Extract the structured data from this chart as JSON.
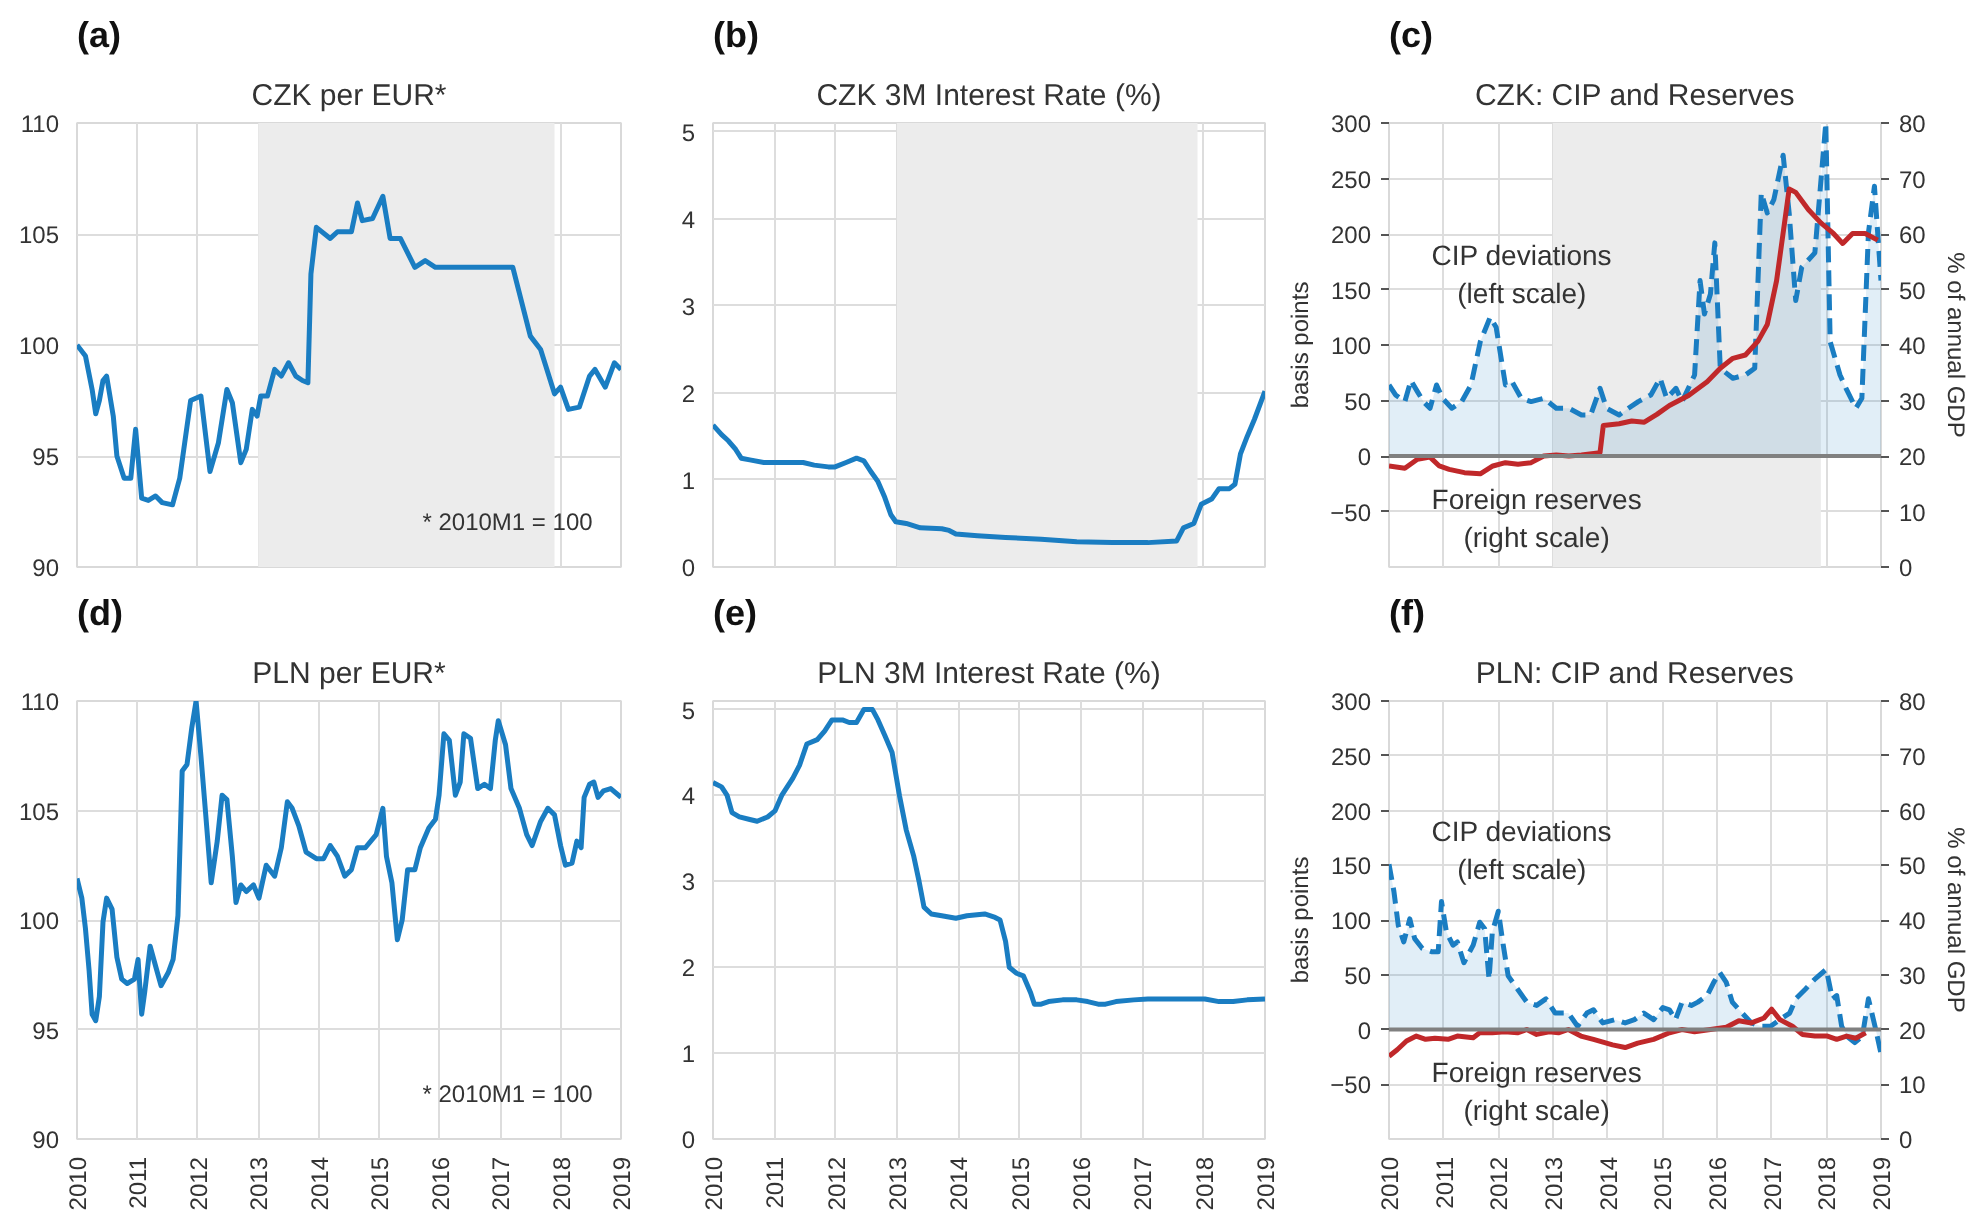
{
  "chart_data": [
    {
      "type": "line",
      "title": "CZK per EUR*",
      "annotations": [
        "(a)",
        "* 2010M1  = 100"
      ],
      "xlim": [
        2010,
        2019
      ],
      "xticks": [
        2010,
        2011,
        2012,
        2013,
        2014,
        2015,
        2016,
        2017,
        2018,
        2019
      ],
      "ylim": [
        90,
        110
      ],
      "yticks": [
        90,
        95,
        100,
        105,
        110
      ],
      "tick_labels": "y",
      "grid": true,
      "bands": [
        {
          "axis": "x",
          "from": 2013,
          "to": 2017.9,
          "color": "#ececec"
        }
      ],
      "series": [
        {
          "color": "#1a7dc2",
          "x": [
            2010.0,
            2010.14,
            2010.25,
            2010.31,
            2010.37,
            2010.43,
            2010.49,
            2010.6,
            2010.66,
            2010.78,
            2010.89,
            2010.97,
            2011.07,
            2011.18,
            2011.3,
            2011.41,
            2011.58,
            2011.7,
            2011.88,
            2012.05,
            2012.2,
            2012.34,
            2012.48,
            2012.57,
            2012.71,
            2012.8,
            2012.9,
            2012.98,
            2013.04,
            2013.15,
            2013.27,
            2013.38,
            2013.5,
            2013.62,
            2013.73,
            2013.82,
            2013.87,
            2013.96,
            2014.19,
            2014.31,
            2014.54,
            2014.64,
            2014.72,
            2014.89,
            2015.06,
            2015.18,
            2015.35,
            2015.59,
            2015.76,
            2015.93,
            2016.63,
            2017.21,
            2017.5,
            2017.67,
            2017.9,
            2018.0,
            2018.13,
            2018.31,
            2018.48,
            2018.57,
            2018.74,
            2018.89,
            2019.0
          ],
          "values": [
            100.0,
            99.5,
            98.0,
            96.9,
            97.5,
            98.4,
            98.6,
            96.8,
            95.0,
            94.0,
            94.0,
            96.2,
            93.1,
            93.0,
            93.2,
            92.9,
            92.8,
            94.0,
            97.5,
            97.7,
            94.3,
            95.6,
            98.0,
            97.4,
            94.7,
            95.3,
            97.1,
            96.8,
            97.7,
            97.7,
            98.9,
            98.6,
            99.2,
            98.6,
            98.4,
            98.3,
            103.2,
            105.3,
            104.8,
            105.1,
            105.1,
            106.4,
            105.6,
            105.7,
            106.7,
            104.8,
            104.8,
            103.5,
            103.8,
            103.5,
            103.5,
            103.5,
            100.4,
            99.8,
            97.8,
            98.1,
            97.1,
            97.2,
            98.6,
            98.9,
            98.1,
            99.2,
            98.9
          ]
        }
      ]
    },
    {
      "type": "line",
      "title": "CZK 3M Interest Rate (%)",
      "annotations": [
        "(b)"
      ],
      "xlim": [
        2010,
        2019
      ],
      "xticks": [
        2010,
        2011,
        2012,
        2013,
        2014,
        2015,
        2016,
        2017,
        2018,
        2019
      ],
      "ylim": [
        0,
        5.1
      ],
      "yticks": [
        0,
        1,
        2,
        3,
        4,
        5
      ],
      "tick_labels": "y",
      "grid": true,
      "bands": [
        {
          "axis": "x",
          "from": 2013,
          "to": 2017.9,
          "color": "#ececec"
        }
      ],
      "series": [
        {
          "color": "#1a7dc2",
          "x": [
            2010.0,
            2010.14,
            2010.25,
            2010.37,
            2010.46,
            2010.6,
            2010.83,
            2011.07,
            2011.3,
            2011.47,
            2011.65,
            2011.88,
            2011.99,
            2012.17,
            2012.34,
            2012.46,
            2012.57,
            2012.69,
            2012.8,
            2012.9,
            2012.98,
            2013.15,
            2013.38,
            2013.73,
            2013.85,
            2013.96,
            2014.31,
            2014.77,
            2015.35,
            2015.93,
            2016.51,
            2017.09,
            2017.56,
            2017.67,
            2017.84,
            2017.96,
            2018.13,
            2018.25,
            2018.42,
            2018.51,
            2018.6,
            2018.71,
            2018.83,
            2019.0
          ],
          "values": [
            1.63,
            1.52,
            1.45,
            1.35,
            1.25,
            1.23,
            1.2,
            1.2,
            1.2,
            1.2,
            1.17,
            1.15,
            1.15,
            1.2,
            1.25,
            1.22,
            1.1,
            0.98,
            0.8,
            0.6,
            0.52,
            0.5,
            0.45,
            0.44,
            0.42,
            0.38,
            0.36,
            0.34,
            0.32,
            0.29,
            0.28,
            0.28,
            0.3,
            0.45,
            0.5,
            0.72,
            0.78,
            0.9,
            0.9,
            0.95,
            1.3,
            1.5,
            1.7,
            2.02
          ]
        }
      ]
    },
    {
      "type": "line",
      "title": "CZK: CIP and Reserves",
      "annotations": [
        "(c)",
        "CIP deviations\n(left scale)",
        "Foreign reserves\n(right scale)"
      ],
      "ylabel": "basis points",
      "y2label": "% of annual GDP",
      "xlim": [
        2010,
        2019
      ],
      "xticks": [
        2010,
        2011,
        2012,
        2013,
        2014,
        2015,
        2016,
        2017,
        2018,
        2019
      ],
      "ylim": [
        -100,
        300
      ],
      "yticks": [
        {
          "value": -50,
          "label": "−50"
        },
        0,
        50,
        100,
        150,
        200,
        250,
        300
      ],
      "y2lim": [
        0,
        80
      ],
      "y2ticks": [
        0,
        10,
        20,
        30,
        40,
        50,
        60,
        70,
        80
      ],
      "tick_labels": "y",
      "grid": true,
      "bands": [
        {
          "axis": "x",
          "from": 2013,
          "to": 2017.9,
          "color": "#ececec"
        }
      ],
      "ref_lines": [
        {
          "axis": "y",
          "value": 0,
          "color": "#808080"
        }
      ],
      "series": [
        {
          "type": "area",
          "line_style": "dashed",
          "color": "#1a7dc2",
          "x": [
            2010.0,
            2010.12,
            2010.29,
            2010.4,
            2010.52,
            2010.63,
            2010.75,
            2010.87,
            2010.98,
            2011.15,
            2011.33,
            2011.5,
            2011.67,
            2011.85,
            2011.96,
            2012.13,
            2012.25,
            2012.42,
            2012.6,
            2012.83,
            2013.06,
            2013.29,
            2013.52,
            2013.69,
            2013.86,
            2013.98,
            2014.21,
            2014.38,
            2014.56,
            2014.79,
            2014.96,
            2015.08,
            2015.25,
            2015.36,
            2015.59,
            2015.69,
            2015.77,
            2015.88,
            2015.96,
            2016.06,
            2016.29,
            2016.52,
            2016.69,
            2016.81,
            2016.92,
            2017.04,
            2017.21,
            2017.32,
            2017.44,
            2017.55,
            2017.79,
            2017.99,
            2018.07,
            2018.25,
            2018.36,
            2018.54,
            2018.65,
            2018.77,
            2018.88,
            2019.0
          ],
          "values": [
            64,
            55,
            49,
            68,
            58,
            49,
            43,
            64,
            52,
            43,
            49,
            64,
            103,
            125,
            116,
            64,
            67,
            52,
            49,
            52,
            43,
            43,
            37,
            37,
            61,
            43,
            37,
            43,
            49,
            55,
            70,
            52,
            61,
            49,
            73,
            158,
            128,
            146,
            192,
            79,
            70,
            73,
            79,
            237,
            219,
            231,
            271,
            219,
            140,
            170,
            183,
            300,
            103,
            73,
            61,
            43,
            52,
            201,
            243,
            158
          ]
        },
        {
          "type": "line",
          "axis": "y2",
          "color": "#c0282a",
          "x": [
            2010.0,
            2010.29,
            2010.52,
            2010.75,
            2010.92,
            2011.1,
            2011.38,
            2011.67,
            2011.9,
            2012.13,
            2012.36,
            2012.6,
            2012.83,
            2013.06,
            2013.29,
            2013.52,
            2013.86,
            2013.92,
            2014.21,
            2014.44,
            2014.67,
            2014.9,
            2015.13,
            2015.48,
            2015.82,
            2016.06,
            2016.29,
            2016.52,
            2016.75,
            2016.92,
            2017.09,
            2017.32,
            2017.44,
            2017.67,
            2017.9,
            2018.13,
            2018.3,
            2018.48,
            2018.71,
            2018.94
          ],
          "values": [
            18.2,
            17.8,
            19.4,
            19.8,
            18.2,
            17.6,
            17.0,
            16.8,
            18.2,
            18.8,
            18.5,
            18.8,
            20.0,
            20.2,
            20.0,
            20.2,
            20.6,
            25.5,
            25.8,
            26.3,
            26.1,
            27.5,
            29.1,
            30.9,
            33.4,
            35.8,
            37.6,
            38.2,
            40.7,
            43.7,
            51.6,
            68.1,
            67.5,
            64.4,
            62.0,
            60.1,
            58.3,
            60.1,
            60.1,
            58.9
          ]
        }
      ]
    },
    {
      "type": "line",
      "title": "PLN per EUR*",
      "annotations": [
        "(d)",
        "* 2010M1  = 100"
      ],
      "xlim": [
        2010,
        2019
      ],
      "xticks": [
        2010,
        2011,
        2012,
        2013,
        2014,
        2015,
        2016,
        2017,
        2018,
        2019
      ],
      "ylim": [
        90,
        110
      ],
      "yticks": [
        90,
        95,
        100,
        105,
        110
      ],
      "grid": true,
      "series": [
        {
          "color": "#1a7dc2",
          "x": [
            2010.0,
            2010.08,
            2010.14,
            2010.2,
            2010.25,
            2010.31,
            2010.37,
            2010.43,
            2010.49,
            2010.58,
            2010.66,
            2010.74,
            2010.83,
            2010.95,
            2011.01,
            2011.07,
            2011.12,
            2011.21,
            2011.3,
            2011.39,
            2011.51,
            2011.59,
            2011.67,
            2011.74,
            2011.82,
            2011.9,
            2011.97,
            2012.05,
            2012.13,
            2012.22,
            2012.32,
            2012.4,
            2012.48,
            2012.57,
            2012.63,
            2012.71,
            2012.8,
            2012.92,
            2013.01,
            2013.13,
            2013.27,
            2013.38,
            2013.48,
            2013.56,
            2013.67,
            2013.79,
            2013.96,
            2014.08,
            2014.19,
            2014.31,
            2014.43,
            2014.54,
            2014.64,
            2014.77,
            2014.95,
            2015.06,
            2015.12,
            2015.21,
            2015.3,
            2015.38,
            2015.47,
            2015.59,
            2015.68,
            2015.82,
            2015.93,
            2015.99,
            2016.07,
            2016.16,
            2016.26,
            2016.34,
            2016.4,
            2016.51,
            2016.63,
            2016.74,
            2016.84,
            2016.92,
            2016.97,
            2017.09,
            2017.18,
            2017.32,
            2017.44,
            2017.53,
            2017.67,
            2017.79,
            2017.9,
            2018.0,
            2018.08,
            2018.19,
            2018.27,
            2018.34,
            2018.39,
            2018.48,
            2018.55,
            2018.62,
            2018.71,
            2018.83,
            2019.0
          ],
          "values": [
            101.9,
            101.0,
            99.6,
            97.7,
            95.7,
            95.4,
            96.5,
            99.9,
            101.0,
            100.5,
            98.3,
            97.3,
            97.1,
            97.3,
            98.2,
            95.7,
            96.7,
            98.8,
            97.9,
            97.0,
            97.6,
            98.2,
            100.2,
            106.8,
            107.1,
            108.8,
            110.0,
            107.5,
            104.8,
            101.7,
            103.6,
            105.7,
            105.5,
            102.9,
            100.8,
            101.6,
            101.3,
            101.6,
            101.0,
            102.5,
            102.0,
            103.3,
            105.4,
            105.1,
            104.3,
            103.1,
            102.8,
            102.8,
            103.4,
            102.9,
            102.0,
            102.3,
            103.3,
            103.3,
            103.9,
            105.1,
            102.9,
            101.7,
            99.1,
            100.0,
            102.3,
            102.3,
            103.3,
            104.2,
            104.6,
            105.7,
            108.5,
            108.2,
            105.7,
            106.3,
            108.5,
            108.3,
            106.0,
            106.2,
            106.0,
            108.2,
            109.1,
            108.0,
            106.0,
            105.1,
            103.9,
            103.4,
            104.5,
            105.1,
            104.8,
            103.4,
            102.5,
            102.6,
            103.6,
            103.3,
            105.6,
            106.2,
            106.3,
            105.6,
            105.9,
            106.0,
            105.6
          ]
        }
      ]
    },
    {
      "type": "line",
      "title": "PLN 3M Interest Rate (%)",
      "annotations": [
        "(e)"
      ],
      "xlim": [
        2010,
        2019
      ],
      "xticks": [
        2010,
        2011,
        2012,
        2013,
        2014,
        2015,
        2016,
        2017,
        2018,
        2019
      ],
      "ylim": [
        0,
        5.1
      ],
      "yticks": [
        0,
        1,
        2,
        3,
        4,
        5
      ],
      "grid": true,
      "series": [
        {
          "color": "#1a7dc2",
          "x": [
            2010.0,
            2010.14,
            2010.23,
            2010.31,
            2010.43,
            2010.6,
            2010.72,
            2010.89,
            2011.01,
            2011.12,
            2011.3,
            2011.41,
            2011.53,
            2011.7,
            2011.82,
            2011.94,
            2012.11,
            2012.22,
            2012.34,
            2012.46,
            2012.6,
            2012.69,
            2012.8,
            2012.92,
            2013.04,
            2013.15,
            2013.27,
            2013.36,
            2013.44,
            2013.56,
            2013.73,
            2013.96,
            2014.14,
            2014.43,
            2014.6,
            2014.68,
            2014.77,
            2014.83,
            2014.95,
            2015.06,
            2015.18,
            2015.24,
            2015.35,
            2015.47,
            2015.7,
            2015.93,
            2016.11,
            2016.28,
            2016.4,
            2016.57,
            2016.86,
            2017.09,
            2017.56,
            2018.02,
            2018.25,
            2018.48,
            2018.71,
            2019.0
          ],
          "values": [
            4.15,
            4.1,
            4.0,
            3.8,
            3.75,
            3.72,
            3.7,
            3.75,
            3.82,
            4.0,
            4.2,
            4.35,
            4.6,
            4.65,
            4.75,
            4.88,
            4.88,
            4.85,
            4.85,
            5.0,
            5.0,
            4.88,
            4.7,
            4.5,
            4.0,
            3.6,
            3.3,
            3.0,
            2.7,
            2.62,
            2.6,
            2.57,
            2.6,
            2.62,
            2.58,
            2.55,
            2.3,
            2.0,
            1.93,
            1.9,
            1.7,
            1.57,
            1.57,
            1.6,
            1.62,
            1.62,
            1.6,
            1.57,
            1.57,
            1.6,
            1.62,
            1.63,
            1.63,
            1.63,
            1.6,
            1.6,
            1.62,
            1.63
          ]
        }
      ]
    },
    {
      "type": "line",
      "title": "PLN: CIP and Reserves",
      "annotations": [
        "(f)",
        "CIP deviations\n(left scale)",
        "Foreign reserves\n(right scale)"
      ],
      "ylabel": "basis points",
      "y2label": "% of annual GDP",
      "xlim": [
        2010,
        2019
      ],
      "xticks": [
        2010,
        2011,
        2012,
        2013,
        2014,
        2015,
        2016,
        2017,
        2018,
        2019
      ],
      "ylim": [
        -100,
        300
      ],
      "yticks": [
        {
          "value": -50,
          "label": "−50"
        },
        0,
        50,
        100,
        150,
        200,
        250,
        300
      ],
      "y2lim": [
        0,
        80
      ],
      "y2ticks": [
        0,
        10,
        20,
        30,
        40,
        50,
        60,
        70,
        80
      ],
      "grid": true,
      "ref_lines": [
        {
          "axis": "y",
          "value": 0,
          "color": "#808080"
        }
      ],
      "series": [
        {
          "type": "area",
          "line_style": "dashed",
          "color": "#1a7dc2",
          "x": [
            2010.0,
            2010.09,
            2010.17,
            2010.27,
            2010.38,
            2010.47,
            2010.61,
            2010.79,
            2010.9,
            2010.96,
            2011.05,
            2011.17,
            2011.25,
            2011.37,
            2011.54,
            2011.66,
            2011.75,
            2011.83,
            2011.89,
            2012.0,
            2012.09,
            2012.18,
            2012.35,
            2012.52,
            2012.7,
            2012.87,
            2013.04,
            2013.28,
            2013.45,
            2013.62,
            2013.74,
            2013.91,
            2014.14,
            2014.32,
            2014.49,
            2014.66,
            2014.84,
            2015.01,
            2015.13,
            2015.24,
            2015.36,
            2015.53,
            2015.65,
            2015.82,
            2015.94,
            2016.05,
            2016.17,
            2016.28,
            2016.46,
            2016.63,
            2016.81,
            2016.98,
            2017.15,
            2017.33,
            2017.44,
            2017.62,
            2017.79,
            2018.0,
            2018.11,
            2018.19,
            2018.28,
            2018.37,
            2018.52,
            2018.66,
            2018.77,
            2018.89,
            2019.0
          ],
          "values": [
            151,
            126,
            95,
            80,
            101,
            83,
            74,
            71,
            71,
            117,
            89,
            77,
            80,
            61,
            77,
            98,
            92,
            46,
            89,
            108,
            77,
            49,
            37,
            25,
            22,
            28,
            15,
            15,
            3,
            15,
            18,
            6,
            9,
            6,
            9,
            15,
            9,
            20,
            18,
            9,
            25,
            22,
            25,
            31,
            43,
            52,
            43,
            25,
            15,
            6,
            3,
            3,
            9,
            15,
            28,
            37,
            46,
            55,
            28,
            31,
            3,
            -6,
            -12,
            -6,
            28,
            3,
            -22
          ]
        },
        {
          "type": "line",
          "axis": "y2",
          "color": "#c0282a",
          "x": [
            2010.0,
            2010.15,
            2010.32,
            2010.5,
            2010.67,
            2010.84,
            2011.08,
            2011.25,
            2011.54,
            2011.66,
            2011.89,
            2012.12,
            2012.35,
            2012.52,
            2012.7,
            2012.93,
            2013.1,
            2013.28,
            2013.51,
            2013.74,
            2014.09,
            2014.32,
            2014.55,
            2014.84,
            2015.13,
            2015.36,
            2015.59,
            2015.88,
            2016.17,
            2016.4,
            2016.63,
            2016.86,
            2017.0,
            2017.15,
            2017.38,
            2017.56,
            2017.79,
            2018.02,
            2018.19,
            2018.37,
            2018.54,
            2018.72
          ],
          "values": [
            15.1,
            16.3,
            17.9,
            18.8,
            18.2,
            18.4,
            18.2,
            18.8,
            18.5,
            19.4,
            19.4,
            19.6,
            19.4,
            20.0,
            19.1,
            19.6,
            19.4,
            20.0,
            18.8,
            18.2,
            17.2,
            16.7,
            17.5,
            18.2,
            19.4,
            20.0,
            19.6,
            20.0,
            20.4,
            21.6,
            21.2,
            22.1,
            23.7,
            21.8,
            20.6,
            19.1,
            18.8,
            18.8,
            18.2,
            18.8,
            18.4,
            19.4
          ]
        }
      ]
    }
  ]
}
